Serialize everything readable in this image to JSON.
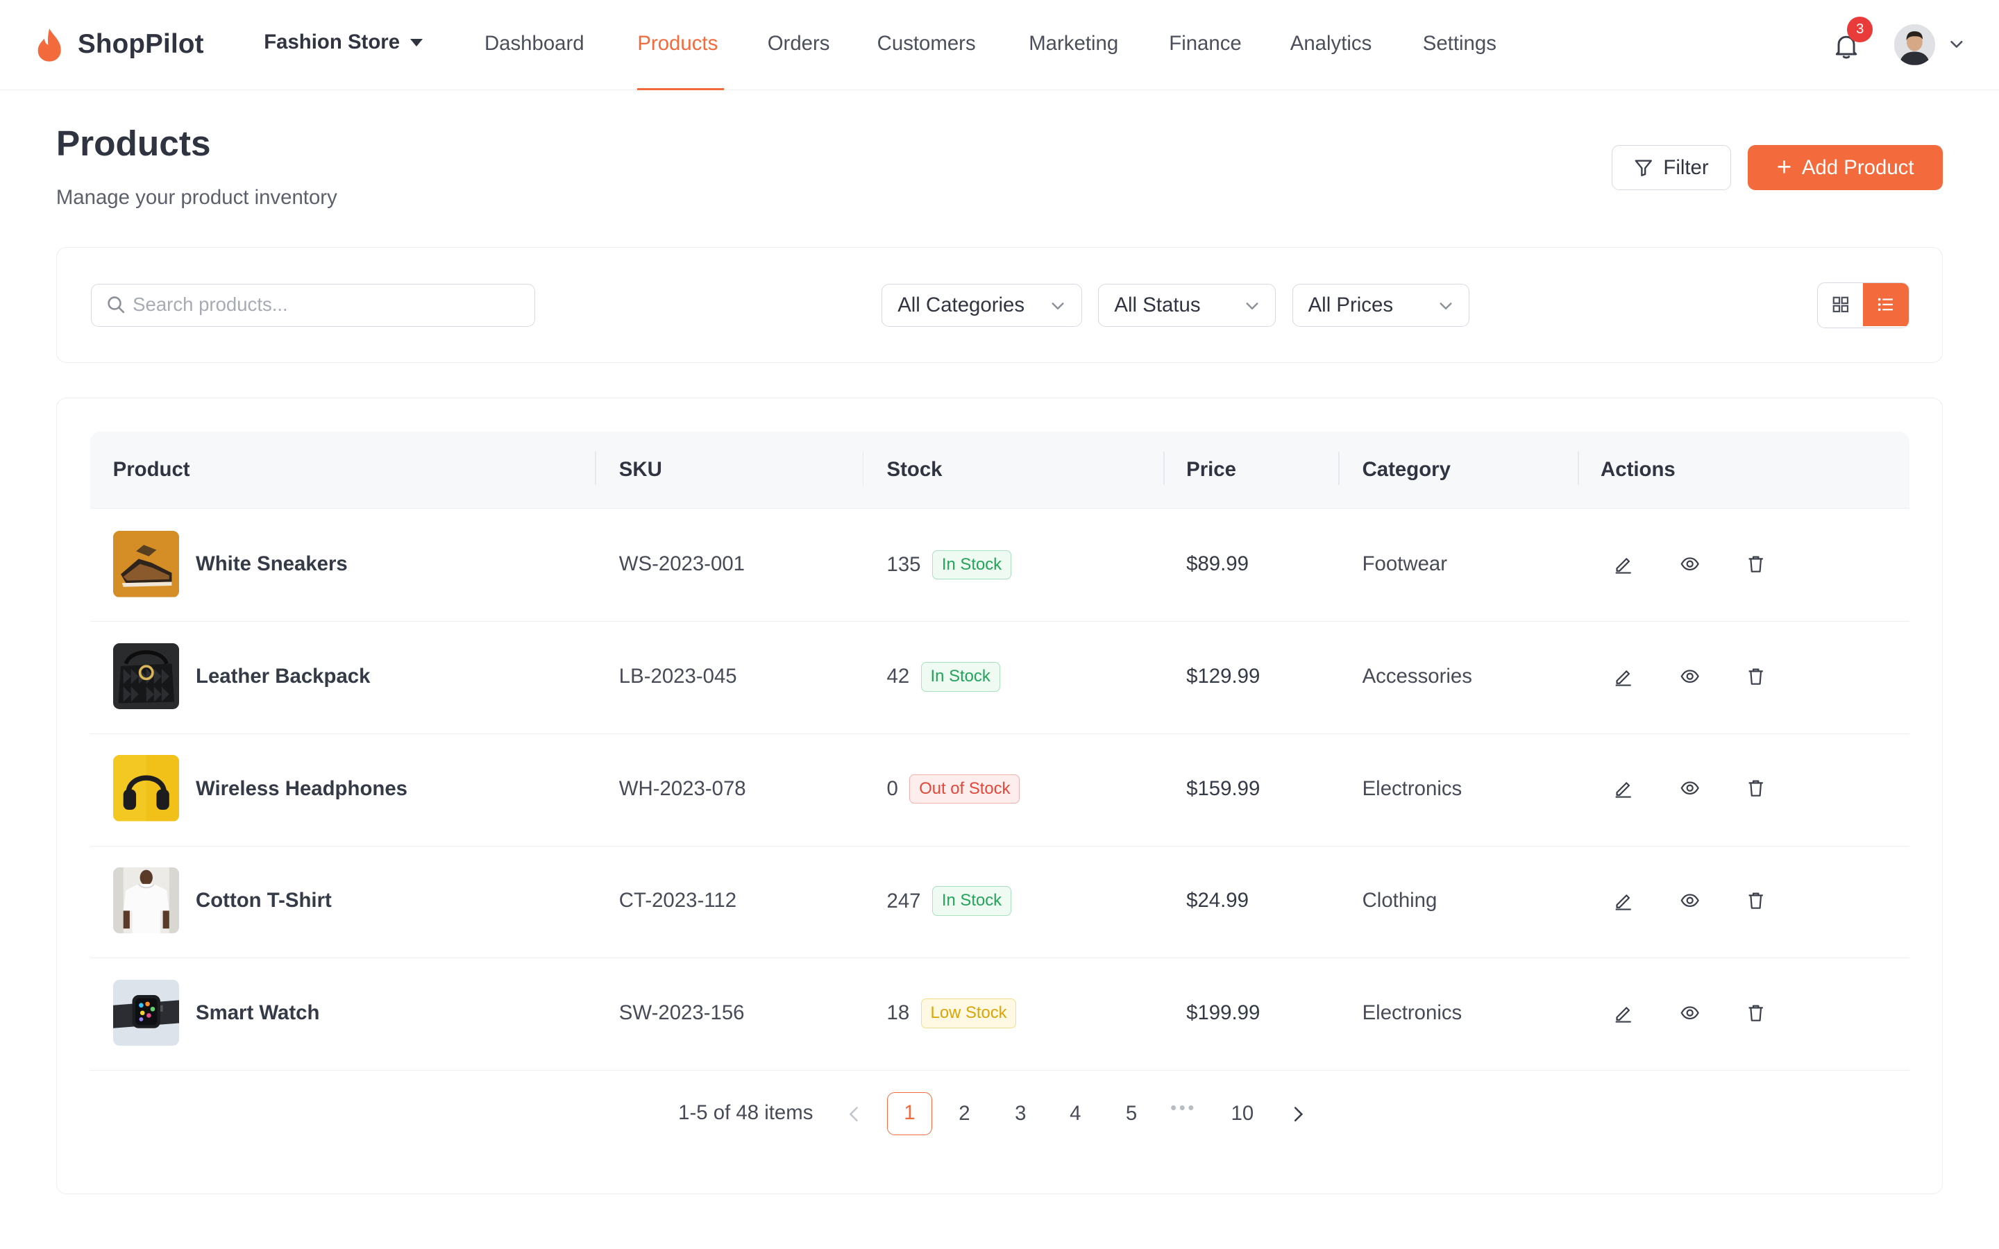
{
  "brand": {
    "name": "ShopPilot"
  },
  "store": {
    "name": "Fashion Store"
  },
  "nav": {
    "items": [
      {
        "label": "Dashboard"
      },
      {
        "label": "Products"
      },
      {
        "label": "Orders"
      },
      {
        "label": "Customers"
      },
      {
        "label": "Marketing"
      },
      {
        "label": "Finance"
      },
      {
        "label": "Analytics"
      },
      {
        "label": "Settings"
      }
    ],
    "active": "Products"
  },
  "notifications": {
    "count": "3"
  },
  "page": {
    "title": "Products",
    "subtitle": "Manage your product inventory"
  },
  "actions": {
    "filter_label": "Filter",
    "add_label": "Add Product"
  },
  "filters": {
    "search_placeholder": "Search products...",
    "category": "All Categories",
    "status": "All Status",
    "price": "All Prices",
    "view_mode": "list"
  },
  "table": {
    "headers": {
      "product": "Product",
      "sku": "SKU",
      "stock": "Stock",
      "price": "Price",
      "category": "Category",
      "actions": "Actions"
    },
    "rows": [
      {
        "name": "White Sneakers",
        "sku": "WS-2023-001",
        "stock": "135",
        "status": "In Stock",
        "price": "$89.99",
        "category": "Footwear"
      },
      {
        "name": "Leather Backpack",
        "sku": "LB-2023-045",
        "stock": "42",
        "status": "In Stock",
        "price": "$129.99",
        "category": "Accessories"
      },
      {
        "name": "Wireless Headphones",
        "sku": "WH-2023-078",
        "stock": "0",
        "status": "Out of Stock",
        "price": "$159.99",
        "category": "Electronics"
      },
      {
        "name": "Cotton T-Shirt",
        "sku": "CT-2023-112",
        "stock": "247",
        "status": "In Stock",
        "price": "$24.99",
        "category": "Clothing"
      },
      {
        "name": "Smart Watch",
        "sku": "SW-2023-156",
        "stock": "18",
        "status": "Low Stock",
        "price": "$199.99",
        "category": "Electronics"
      }
    ]
  },
  "pagination": {
    "summary": "1-5 of 48 items",
    "pages": [
      "1",
      "2",
      "3",
      "4",
      "5"
    ],
    "last": "10",
    "current": "1"
  },
  "colors": {
    "accent": "#f36a3d",
    "in_stock": "#22a559",
    "out_of_stock": "#e2483a",
    "low_stock": "#d9a509"
  }
}
